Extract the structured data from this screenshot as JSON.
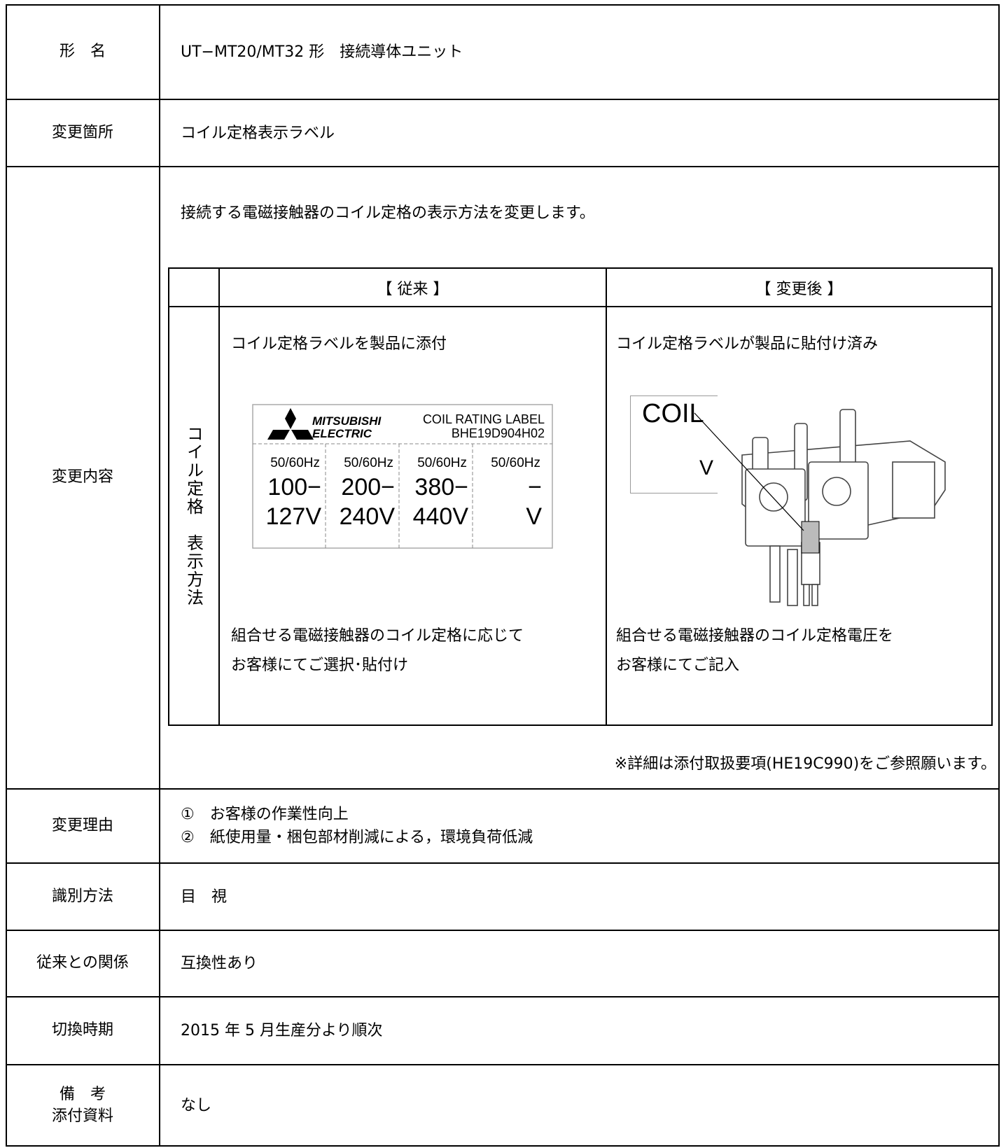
{
  "table": {
    "rows": [
      {
        "label": "形　名",
        "text": "UT−MT20/MT32 形　接続導体ユニット"
      },
      {
        "label": "変更箇所",
        "text": "コイル定格表示ラベル"
      },
      {
        "label": "変更内容",
        "intro": "接続する電磁接触器のコイル定格の表示方法を変更します。",
        "comparison": {
          "row_label": "コイル定格　表示方法",
          "columns": [
            {
              "header": "【 従来 】",
              "top": "コイル定格ラベルを製品に添付",
              "bottom": [
                "組合せる電磁接触器のコイル定格に応じて",
                "お客様にてご選択･貼付け"
              ]
            },
            {
              "header": "【 変更後 】",
              "top": "コイル定格ラベルが製品に貼付け済み",
              "bottom": [
                "組合せる電磁接触器のコイル定格電圧を",
                "お客様にてご記入"
              ]
            }
          ],
          "old_label": {
            "brand": [
              "MITSUBISHI",
              "ELECTRIC"
            ],
            "title": "COIL RATING LABEL",
            "code": "BHE19D904H02",
            "cells": [
              [
                "50/60Hz",
                "100−",
                "127V"
              ],
              [
                "50/60Hz",
                "200−",
                "240V"
              ],
              [
                "50/60Hz",
                "380−",
                "440V"
              ],
              [
                "50/60Hz",
                "−",
                "V"
              ]
            ]
          },
          "new_label": [
            "COIL",
            "V"
          ]
        },
        "note": "※詳細は添付取扱要項(HE19C990)をご参照願います。"
      },
      {
        "label": "変更理由",
        "lines": [
          "①　お客様の作業性向上",
          "②　紙使用量・梱包部材削減による，環境負荷低減"
        ]
      },
      {
        "label": "識別方法",
        "text": "目　視"
      },
      {
        "label": "従来との関係",
        "text": "互換性あり"
      },
      {
        "label": "切換時期",
        "text": "2015 年 5 月生産分より順次"
      },
      {
        "label": [
          "備　考",
          "添付資料"
        ],
        "text": "なし"
      }
    ]
  }
}
